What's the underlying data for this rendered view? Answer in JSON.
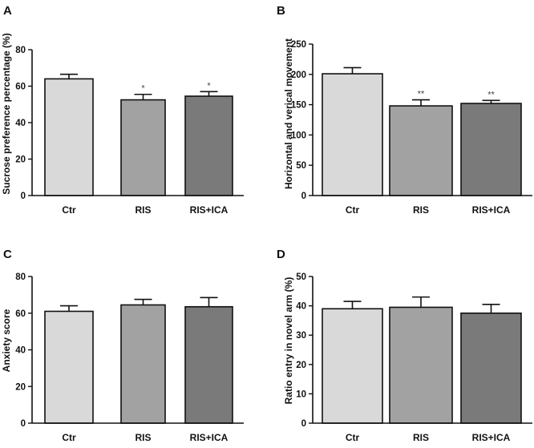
{
  "chart_data": [
    {
      "id": "A",
      "panel_label": "A",
      "type": "bar",
      "ylabel": "Sucrose preference percentage (%)",
      "ylim": [
        0,
        80
      ],
      "ticks": [
        "0",
        "20",
        "40",
        "60",
        "80"
      ],
      "tick_values": [
        0,
        20,
        40,
        60,
        80
      ],
      "categories": [
        "Ctr",
        "RIS",
        "RIS+ICA"
      ],
      "values": [
        64,
        52.5,
        54.5
      ],
      "errors": [
        2.5,
        3,
        2.5
      ],
      "significance": [
        "",
        "*",
        "*"
      ],
      "bar_colors": [
        "#d9d9d9",
        "#a2a2a2",
        "#7a7a7a"
      ]
    },
    {
      "id": "B",
      "panel_label": "B",
      "type": "bar",
      "ylabel": "Horizontal and verical movement",
      "ylim": [
        0,
        250
      ],
      "ticks": [
        "0",
        "50",
        "100",
        "150",
        "200",
        "250"
      ],
      "tick_values": [
        0,
        50,
        100,
        150,
        200,
        250
      ],
      "categories": [
        "Ctr",
        "RIS",
        "RIS+ICA"
      ],
      "values": [
        201,
        148,
        152
      ],
      "errors": [
        10,
        10,
        5
      ],
      "significance": [
        "",
        "**",
        "**"
      ],
      "bar_colors": [
        "#d9d9d9",
        "#a2a2a2",
        "#7a7a7a"
      ]
    },
    {
      "id": "C",
      "panel_label": "C",
      "type": "bar",
      "ylabel": "Anxiety score",
      "ylim": [
        0,
        80
      ],
      "ticks": [
        "0",
        "20",
        "40",
        "60",
        "80"
      ],
      "tick_values": [
        0,
        20,
        40,
        60,
        80
      ],
      "categories": [
        "Ctr",
        "RIS",
        "RIS+ICA"
      ],
      "values": [
        61,
        64.5,
        63.5
      ],
      "errors": [
        3,
        3,
        5
      ],
      "significance": [
        "",
        "",
        ""
      ],
      "bar_colors": [
        "#d9d9d9",
        "#a2a2a2",
        "#7a7a7a"
      ]
    },
    {
      "id": "D",
      "panel_label": "D",
      "type": "bar",
      "ylabel": "Ratio entry in novel arm (%)",
      "ylim": [
        0,
        50
      ],
      "ticks": [
        "0",
        "10",
        "20",
        "30",
        "40",
        "50"
      ],
      "tick_values": [
        0,
        10,
        20,
        30,
        40,
        50
      ],
      "categories": [
        "Ctr",
        "RIS",
        "RIS+ICA"
      ],
      "values": [
        39,
        39.5,
        37.5
      ],
      "errors": [
        2.5,
        3.5,
        3
      ],
      "significance": [
        "",
        "",
        ""
      ],
      "bar_colors": [
        "#d9d9d9",
        "#a2a2a2",
        "#7a7a7a"
      ]
    }
  ]
}
